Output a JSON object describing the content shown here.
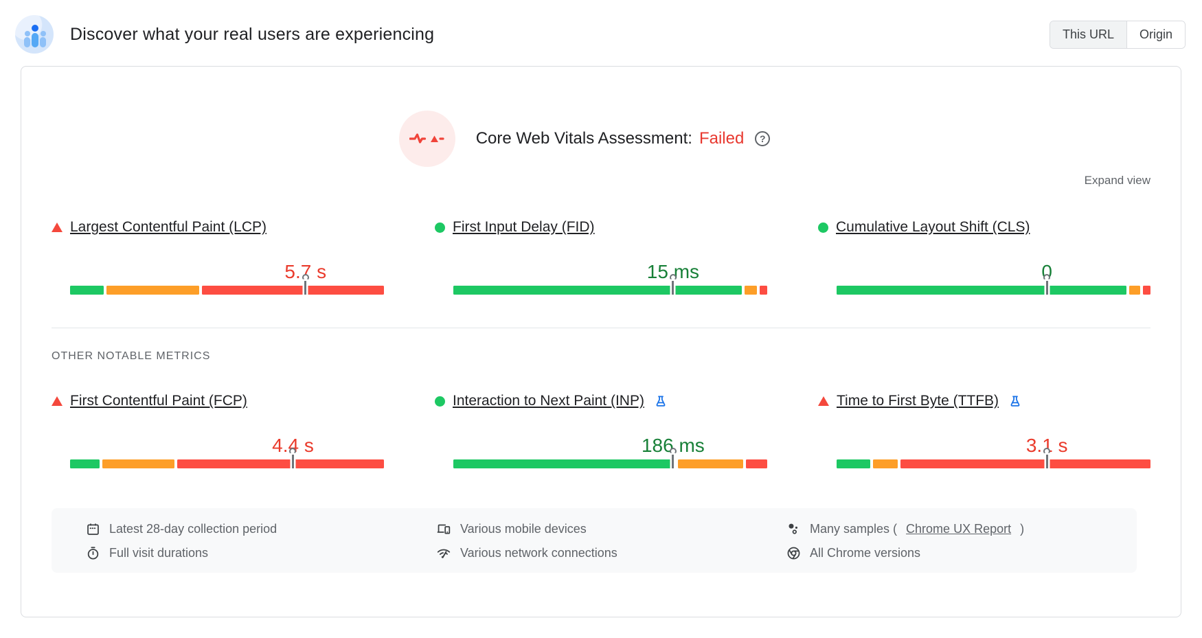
{
  "header": {
    "title": "Discover what your real users are experiencing",
    "toggle": {
      "this_url": "This URL",
      "origin": "Origin",
      "selected": "This URL"
    }
  },
  "assessment": {
    "title": "Core Web Vitals Assessment:",
    "status": "Failed",
    "help_glyph": "?",
    "expand_label": "Expand view"
  },
  "section_label": "OTHER NOTABLE METRICS",
  "colors": {
    "good": "#1dc863",
    "average": "#fd9e28",
    "poor": "#fd4d42",
    "value_good_text": "#188038",
    "value_poor_text": "#ea3b2c",
    "status_failed_text": "#e8382f"
  },
  "metrics": [
    {
      "id": "lcp",
      "label": "Largest Contentful Paint (LCP)",
      "status": "poor",
      "value": "5.7 s",
      "value_color": "#ea3b2c",
      "experimental": false,
      "bar": {
        "segments": [
          {
            "status": "good",
            "pct": 11
          },
          {
            "status": "average",
            "pct": 30
          },
          {
            "status": "poor",
            "pct": 59
          }
        ],
        "marker_pct": 75
      }
    },
    {
      "id": "fid",
      "label": "First Input Delay (FID)",
      "status": "good",
      "value": "15 ms",
      "value_color": "#188038",
      "experimental": false,
      "bar": {
        "segments": [
          {
            "status": "good",
            "pct": 93.5
          },
          {
            "status": "average",
            "pct": 4
          },
          {
            "status": "poor",
            "pct": 2.5
          }
        ],
        "marker_pct": 70
      }
    },
    {
      "id": "cls",
      "label": "Cumulative Layout Shift (CLS)",
      "status": "good",
      "value": "0",
      "value_color": "#188038",
      "experimental": false,
      "bar": {
        "segments": [
          {
            "status": "good",
            "pct": 94
          },
          {
            "status": "average",
            "pct": 3.5
          },
          {
            "status": "poor",
            "pct": 2.5
          }
        ],
        "marker_pct": 67
      }
    },
    {
      "id": "fcp",
      "label": "First Contentful Paint (FCP)",
      "status": "poor",
      "value": "4.4 s",
      "value_color": "#ea3b2c",
      "experimental": false,
      "bar": {
        "segments": [
          {
            "status": "good",
            "pct": 9.5
          },
          {
            "status": "average",
            "pct": 23.5
          },
          {
            "status": "poor",
            "pct": 67
          }
        ],
        "marker_pct": 71
      }
    },
    {
      "id": "inp",
      "label": "Interaction to Next Paint (INP)",
      "status": "good",
      "value": "186 ms",
      "value_color": "#188038",
      "experimental": true,
      "bar": {
        "segments": [
          {
            "status": "good",
            "pct": 72
          },
          {
            "status": "average",
            "pct": 21
          },
          {
            "status": "poor",
            "pct": 7
          }
        ],
        "marker_pct": 70
      }
    },
    {
      "id": "ttfb",
      "label": "Time to First Byte (TTFB)",
      "status": "poor",
      "value": "3.1 s",
      "value_color": "#ea3b2c",
      "experimental": true,
      "bar": {
        "segments": [
          {
            "status": "good",
            "pct": 11
          },
          {
            "status": "average",
            "pct": 8
          },
          {
            "status": "poor",
            "pct": 81
          }
        ],
        "marker_pct": 67
      }
    }
  ],
  "footer": {
    "collection_period": {
      "icon": "calendar-icon",
      "text": "Latest 28-day collection period"
    },
    "devices": {
      "icon": "devices-icon",
      "text": "Various mobile devices"
    },
    "samples": {
      "icon": "samples-icon",
      "prefix": "Many samples (",
      "link": "Chrome UX Report",
      "suffix": ")"
    },
    "visit_durations": {
      "icon": "stopwatch-icon",
      "text": "Full visit durations"
    },
    "network": {
      "icon": "network-icon",
      "text": "Various network connections"
    },
    "chrome": {
      "icon": "chrome-icon",
      "text": "All Chrome versions"
    }
  }
}
